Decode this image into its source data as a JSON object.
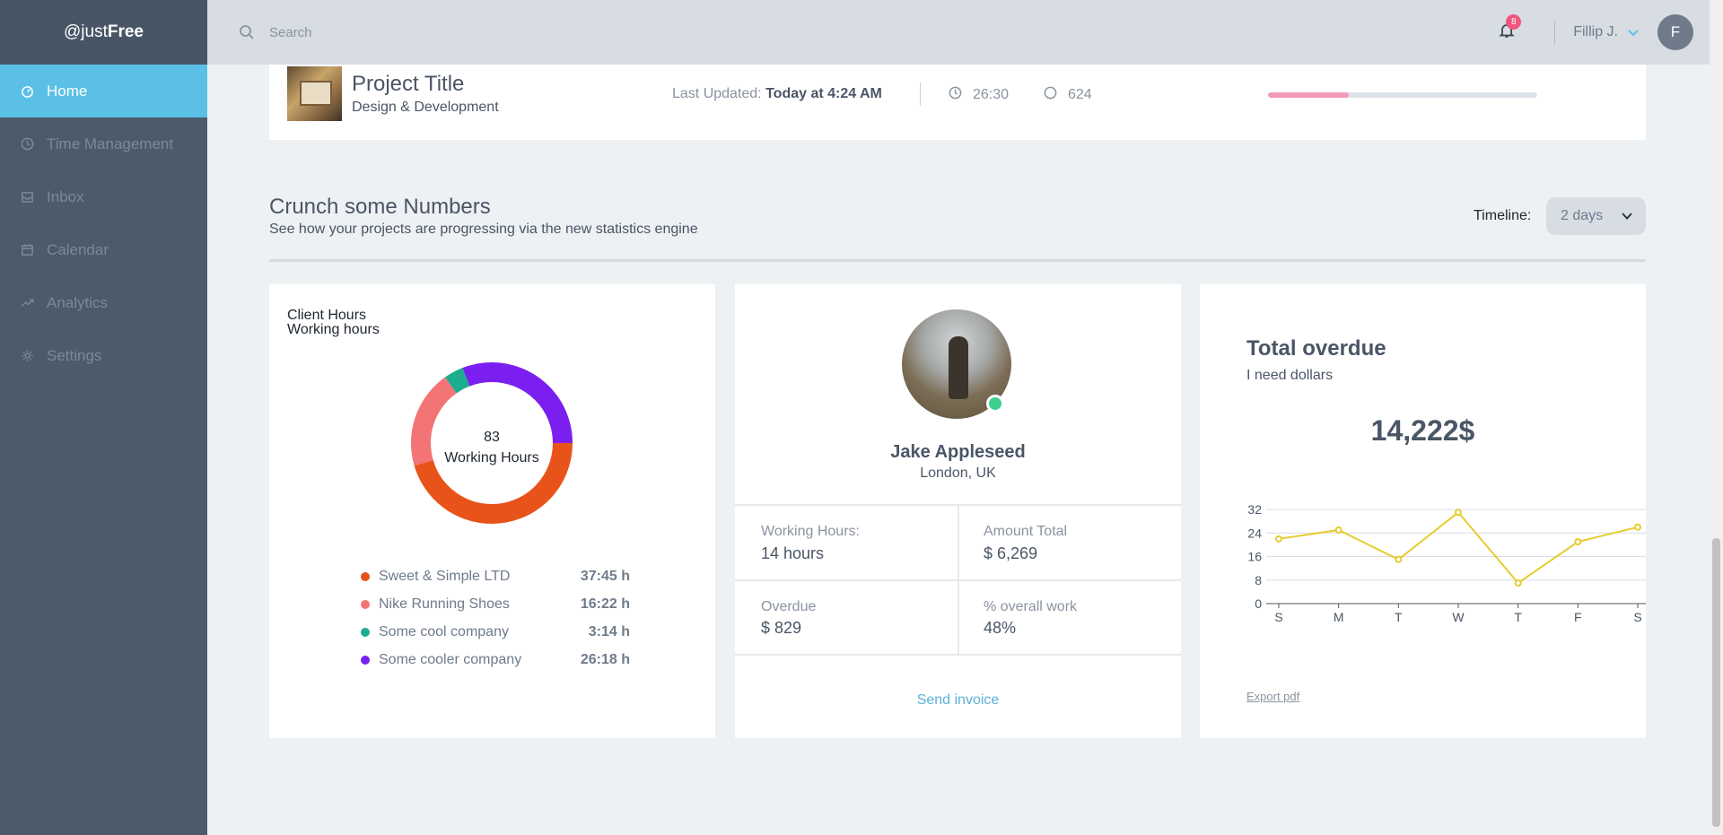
{
  "sidebar": {
    "brand_prefix": "@just",
    "brand_bold": "Free",
    "items": [
      {
        "label": "Home",
        "icon": "dashboard-icon",
        "active": true
      },
      {
        "label": "Time Management",
        "icon": "clock-icon"
      },
      {
        "label": "Inbox",
        "icon": "inbox-icon"
      },
      {
        "label": "Calendar",
        "icon": "calendar-icon"
      },
      {
        "label": "Analytics",
        "icon": "trend-icon"
      },
      {
        "label": "Settings",
        "icon": "gear-icon"
      }
    ]
  },
  "topbar": {
    "search_placeholder": "Search",
    "notification_count": "8",
    "username": "Fillip J.",
    "avatar_initial": "F"
  },
  "project": {
    "title": "Project Title",
    "subtitle": "Design & Development",
    "updated_label": "Last Updated:",
    "updated_value": "Today at 4:24 AM",
    "time": "26:30",
    "comments": "624",
    "progress": 0.3,
    "progress_color": "#f29ab8"
  },
  "section": {
    "title": "Crunch some Numbers",
    "subtitle": "See how your projects are progressing via the new statistics engine",
    "timeline_label": "Timeline:",
    "timeline_value": "2 days"
  },
  "client_hours": {
    "title_line1": "Client Hours",
    "title_line2": "Working hours",
    "center_value": "83",
    "center_label": "Working Hours",
    "legend": [
      {
        "name": "Sweet & Simple LTD",
        "value": "37:45 h",
        "color": "#e8531a",
        "share": 0.4545
      },
      {
        "name": "Nike Running Shoes",
        "value": "16:22 h",
        "color": "#f27474",
        "share": 0.197
      },
      {
        "name": "Some cool company",
        "value": "3:14 h",
        "color": "#1aae8e",
        "share": 0.039
      },
      {
        "name": "Some cooler company",
        "value": "26:18 h",
        "color": "#7a1ff0",
        "share": 0.3095
      }
    ]
  },
  "profile": {
    "name": "Jake Appleseed",
    "location": "London, UK",
    "stats": [
      {
        "label": "Working Hours:",
        "value": "14 hours"
      },
      {
        "label": "Amount Total",
        "value": "$ 6,269"
      },
      {
        "label": "Overdue",
        "value": "$ 829"
      },
      {
        "label": "% overall work",
        "value": "48%"
      }
    ],
    "action": "Send invoice"
  },
  "overdue": {
    "title": "Total overdue",
    "subtitle": "I need dollars",
    "amount": "14,222$",
    "export_label": "Export pdf"
  },
  "chart_data": {
    "type": "line",
    "categories": [
      "S",
      "M",
      "T",
      "W",
      "T",
      "F",
      "S"
    ],
    "series": [
      {
        "values": [
          22,
          25,
          15,
          31,
          7,
          21,
          26
        ],
        "color": "#e6cc2e"
      }
    ],
    "yticks": [
      0,
      8,
      16,
      24,
      32
    ],
    "ylim": [
      0,
      32
    ],
    "grid": true
  }
}
